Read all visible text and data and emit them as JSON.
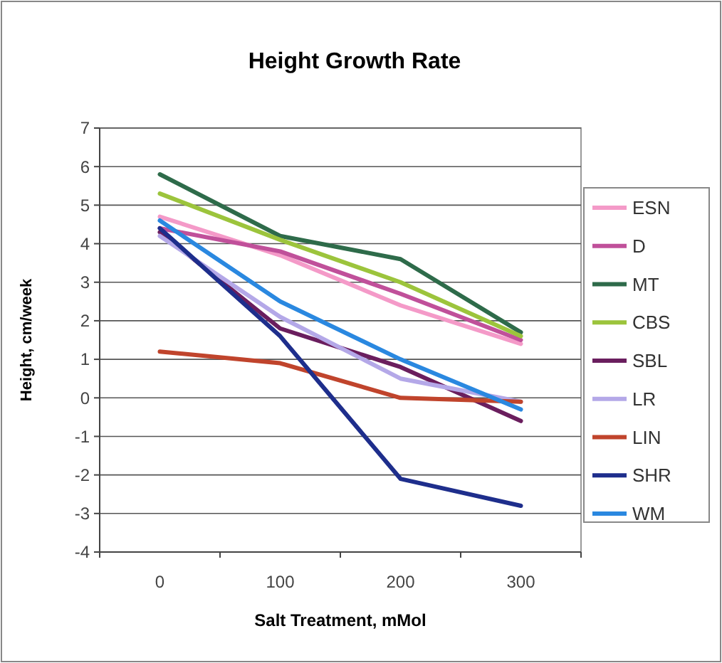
{
  "chart_data": {
    "type": "line",
    "title": "Height Growth Rate",
    "xlabel": "Salt Treatment, mMol",
    "ylabel": "Height, cm/week",
    "categories": [
      "0",
      "100",
      "200",
      "300"
    ],
    "ylim": [
      -4,
      7
    ],
    "yticks": [
      -4,
      -3,
      -2,
      -1,
      0,
      1,
      2,
      3,
      4,
      5,
      6,
      7
    ],
    "grid": "y",
    "legend": "right",
    "marker": "none",
    "series": [
      {
        "name": "ESN",
        "color": "#f49ac8",
        "values": [
          4.7,
          3.7,
          2.4,
          1.4
        ]
      },
      {
        "name": "D",
        "color": "#c0509a",
        "values": [
          4.4,
          3.8,
          2.7,
          1.5
        ]
      },
      {
        "name": "MT",
        "color": "#2e6b4a",
        "values": [
          5.8,
          4.2,
          3.6,
          1.7
        ]
      },
      {
        "name": "CBS",
        "color": "#9cc43c",
        "values": [
          5.3,
          4.1,
          3.0,
          1.6
        ]
      },
      {
        "name": "SBL",
        "color": "#6a1e5e",
        "values": [
          4.3,
          1.8,
          0.8,
          -0.6
        ]
      },
      {
        "name": "LR",
        "color": "#b4a8e8",
        "values": [
          4.2,
          2.1,
          0.5,
          -0.1
        ]
      },
      {
        "name": "LIN",
        "color": "#c0442c",
        "values": [
          1.2,
          0.9,
          0.0,
          -0.1
        ]
      },
      {
        "name": "SHR",
        "color": "#1e2e8c",
        "values": [
          4.4,
          1.6,
          -2.1,
          -2.8
        ]
      },
      {
        "name": "WM",
        "color": "#2a88e0",
        "values": [
          4.6,
          2.5,
          1.0,
          -0.3
        ]
      }
    ]
  }
}
